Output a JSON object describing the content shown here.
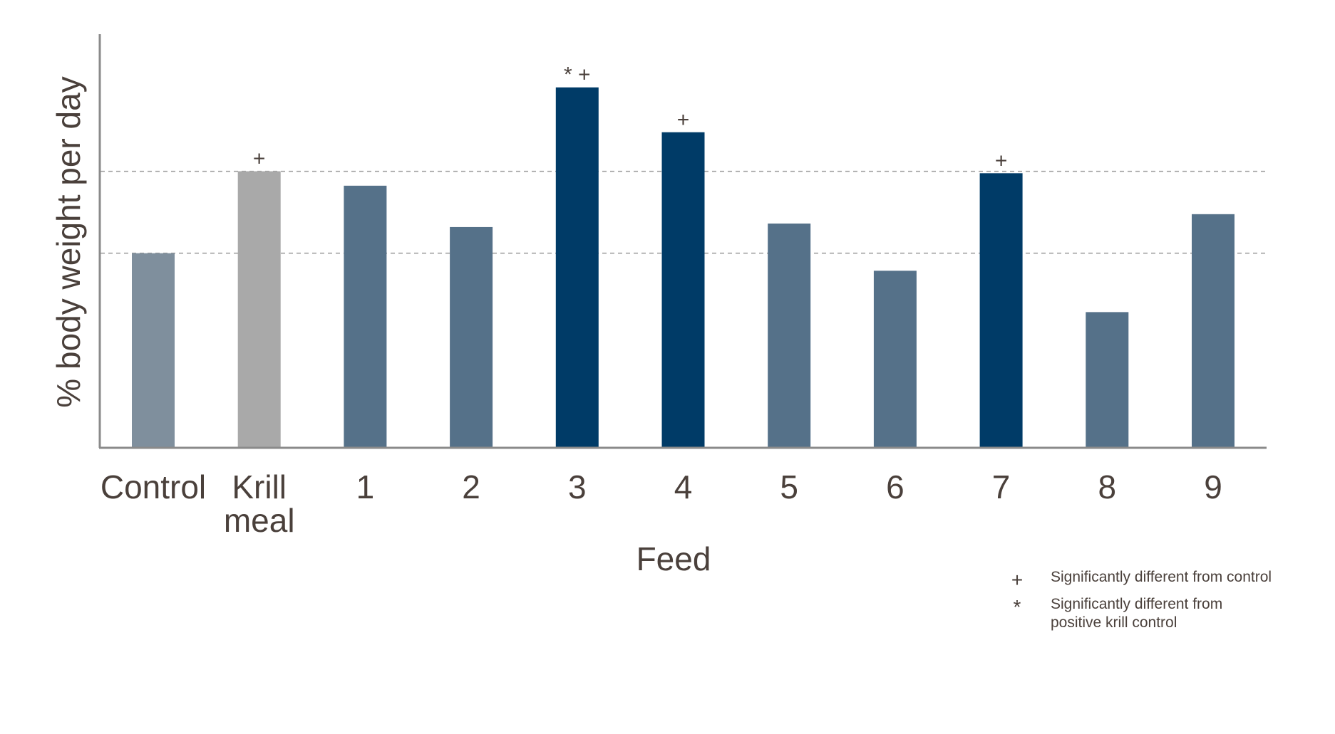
{
  "chart_data": {
    "type": "bar",
    "xlabel": "Feed",
    "ylabel": "% body weight per day",
    "categories": [
      "Control",
      "Krill meal",
      "1",
      "2",
      "3",
      "4",
      "5",
      "6",
      "7",
      "8",
      "9"
    ],
    "category_lines": [
      [
        "Control"
      ],
      [
        "Krill",
        "meal"
      ],
      [
        "1"
      ],
      [
        "2"
      ],
      [
        "3"
      ],
      [
        "4"
      ],
      [
        "5"
      ],
      [
        "6"
      ],
      [
        "7"
      ],
      [
        "8"
      ],
      [
        "9"
      ]
    ],
    "values": [
      0.497,
      0.707,
      0.67,
      0.564,
      0.922,
      0.807,
      0.573,
      0.452,
      0.702,
      0.346,
      0.597
    ],
    "ylim": [
      0,
      1.0
    ],
    "reference_lines": [
      0.497,
      0.707
    ],
    "grid": false,
    "markers": [
      "",
      "+",
      "",
      "",
      "* +",
      "+",
      "",
      "",
      "+",
      "",
      ""
    ],
    "bar_colors": [
      "#7f8f9d",
      "#a9a9a9",
      "#557189",
      "#557189",
      "#003b67",
      "#003b67",
      "#557189",
      "#557189",
      "#003b67",
      "#557189",
      "#557189"
    ],
    "legend": {
      "placement": "bottom-right",
      "items": [
        {
          "symbol": "+",
          "lines": [
            "Significantly different from control"
          ]
        },
        {
          "symbol": "*",
          "lines": [
            "Significantly different from",
            "positive krill control"
          ]
        }
      ]
    }
  }
}
